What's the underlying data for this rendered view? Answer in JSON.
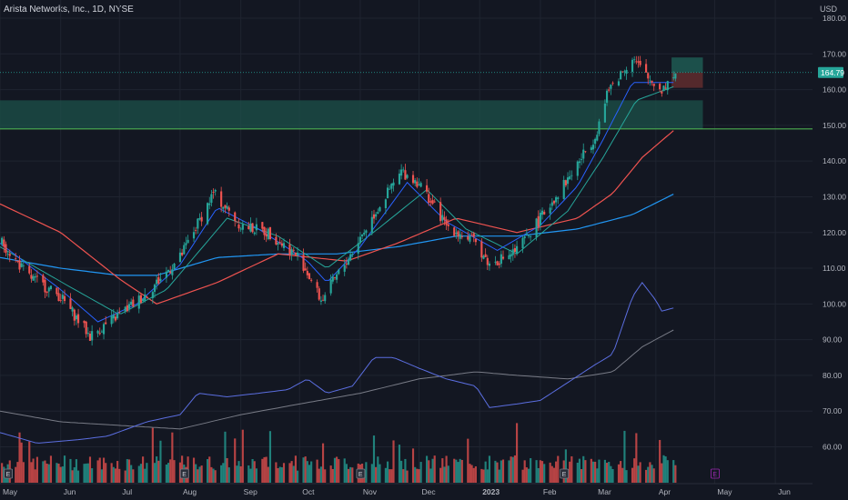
{
  "header": {
    "symbol_title": "Arista Networks, Inc., 1D, NYSE",
    "currency": "USD"
  },
  "colors": {
    "background": "#131722",
    "grid": "#1f2430",
    "up": "#26a69a",
    "down": "#ef5350",
    "ema_fast": "#2962ff",
    "sma_mid": "#26a69a",
    "ma50": "#ef5350",
    "ma200": "#2196f3",
    "relative_strength": "#5b6ee0",
    "rs_ma": "#787b86",
    "support_line": "#4caf50",
    "zone": "#1b4d47",
    "target_zone": "#1f5a52",
    "stop_zone": "#5c2b2e",
    "price_badge": "#26a69a"
  },
  "chart_data": {
    "type": "candlestick",
    "title": "Arista Networks, Inc., 1D, NYSE",
    "ylabel": "USD",
    "ylim": [
      50,
      180
    ],
    "y_ticks": [
      "180.00",
      "170.00",
      "160.00",
      "150.00",
      "140.00",
      "130.00",
      "120.00",
      "110.00",
      "100.00",
      "90.00",
      "80.00",
      "70.00",
      "60.00"
    ],
    "x_ticks": [
      "May",
      "Jun",
      "Jul",
      "Aug",
      "Sep",
      "Oct",
      "Nov",
      "Dec",
      "2023",
      "Feb",
      "Mar",
      "Apr",
      "May",
      "Jun"
    ],
    "x_range": [
      "2022-05-01",
      "2023-06-20"
    ],
    "last_price": "164.79",
    "price_path": [
      [
        "2022-05-01",
        118
      ],
      [
        "2022-05-15",
        108
      ],
      [
        "2022-06-01",
        102
      ],
      [
        "2022-06-16",
        91
      ],
      [
        "2022-07-01",
        97
      ],
      [
        "2022-07-15",
        103
      ],
      [
        "2022-08-01",
        113
      ],
      [
        "2022-08-18",
        131
      ],
      [
        "2022-09-01",
        122
      ],
      [
        "2022-09-15",
        120
      ],
      [
        "2022-10-01",
        113
      ],
      [
        "2022-10-12",
        101
      ],
      [
        "2022-10-25",
        112
      ],
      [
        "2022-11-08",
        125
      ],
      [
        "2022-11-22",
        137
      ],
      [
        "2022-12-01",
        134
      ],
      [
        "2022-12-15",
        122
      ],
      [
        "2022-12-30",
        117
      ],
      [
        "2023-01-06",
        111
      ],
      [
        "2023-01-20",
        115
      ],
      [
        "2023-02-01",
        124
      ],
      [
        "2023-02-15",
        135
      ],
      [
        "2023-03-01",
        147
      ],
      [
        "2023-03-08",
        160
      ],
      [
        "2023-03-20",
        169
      ],
      [
        "2023-03-28",
        163
      ],
      [
        "2023-04-04",
        160
      ],
      [
        "2023-04-11",
        164.79
      ]
    ],
    "ema_fast_path": [
      [
        "2022-05-01",
        117
      ],
      [
        "2022-06-01",
        104
      ],
      [
        "2022-06-20",
        95
      ],
      [
        "2022-07-10",
        100
      ],
      [
        "2022-08-01",
        111
      ],
      [
        "2022-08-20",
        127
      ],
      [
        "2022-09-10",
        121
      ],
      [
        "2022-10-05",
        112
      ],
      [
        "2022-10-15",
        106
      ],
      [
        "2022-11-01",
        116
      ],
      [
        "2022-11-25",
        134
      ],
      [
        "2022-12-15",
        123
      ],
      [
        "2023-01-10",
        115
      ],
      [
        "2023-02-01",
        122
      ],
      [
        "2023-02-20",
        133
      ],
      [
        "2023-03-05",
        146
      ],
      [
        "2023-03-20",
        162
      ],
      [
        "2023-04-11",
        162
      ]
    ],
    "sma_mid_path": [
      [
        "2022-05-01",
        116
      ],
      [
        "2022-06-05",
        105
      ],
      [
        "2022-07-01",
        97
      ],
      [
        "2022-07-25",
        104
      ],
      [
        "2022-08-25",
        124
      ],
      [
        "2022-09-20",
        119
      ],
      [
        "2022-10-15",
        110
      ],
      [
        "2022-11-10",
        121
      ],
      [
        "2022-12-05",
        132
      ],
      [
        "2022-12-25",
        121
      ],
      [
        "2023-01-20",
        114
      ],
      [
        "2023-02-15",
        126
      ],
      [
        "2023-03-05",
        141
      ],
      [
        "2023-03-22",
        157
      ],
      [
        "2023-04-11",
        161
      ]
    ],
    "ma50_path": [
      [
        "2022-05-01",
        128
      ],
      [
        "2022-06-01",
        120
      ],
      [
        "2022-07-01",
        107
      ],
      [
        "2022-07-20",
        100
      ],
      [
        "2022-08-20",
        106
      ],
      [
        "2022-09-20",
        114
      ],
      [
        "2022-10-25",
        112
      ],
      [
        "2022-11-20",
        117
      ],
      [
        "2022-12-20",
        124
      ],
      [
        "2023-01-20",
        120
      ],
      [
        "2023-02-20",
        124
      ],
      [
        "2023-03-10",
        131
      ],
      [
        "2023-03-25",
        141
      ],
      [
        "2023-04-11",
        149
      ]
    ],
    "ma200_path": [
      [
        "2022-05-01",
        113
      ],
      [
        "2022-06-01",
        110
      ],
      [
        "2022-07-01",
        108
      ],
      [
        "2022-07-20",
        108
      ],
      [
        "2022-08-20",
        113
      ],
      [
        "2022-09-20",
        114
      ],
      [
        "2022-10-20",
        114
      ],
      [
        "2022-11-20",
        116
      ],
      [
        "2022-12-20",
        119
      ],
      [
        "2023-01-20",
        119
      ],
      [
        "2023-02-20",
        121
      ],
      [
        "2023-03-20",
        125
      ],
      [
        "2023-04-11",
        131
      ]
    ],
    "relative_strength_path": [
      [
        "2022-05-01",
        64
      ],
      [
        "2022-05-20",
        61
      ],
      [
        "2022-06-10",
        62
      ],
      [
        "2022-06-25",
        63
      ],
      [
        "2022-07-15",
        67
      ],
      [
        "2022-08-01",
        69
      ],
      [
        "2022-08-10",
        75
      ],
      [
        "2022-08-25",
        74
      ],
      [
        "2022-09-10",
        75
      ],
      [
        "2022-09-25",
        76
      ],
      [
        "2022-10-05",
        79
      ],
      [
        "2022-10-15",
        75
      ],
      [
        "2022-10-28",
        77
      ],
      [
        "2022-11-08",
        85
      ],
      [
        "2022-11-18",
        85
      ],
      [
        "2022-12-01",
        82
      ],
      [
        "2022-12-15",
        79
      ],
      [
        "2022-12-30",
        77
      ],
      [
        "2023-01-06",
        71
      ],
      [
        "2023-01-20",
        72
      ],
      [
        "2023-02-01",
        73
      ],
      [
        "2023-02-15",
        78
      ],
      [
        "2023-03-01",
        83
      ],
      [
        "2023-03-10",
        86
      ],
      [
        "2023-03-20",
        102
      ],
      [
        "2023-03-25",
        106
      ],
      [
        "2023-04-01",
        101
      ],
      [
        "2023-04-04",
        98
      ],
      [
        "2023-04-11",
        99
      ]
    ],
    "rs_ma_path": [
      [
        "2022-05-01",
        70
      ],
      [
        "2022-06-01",
        67
      ],
      [
        "2022-07-01",
        66
      ],
      [
        "2022-08-01",
        65
      ],
      [
        "2022-09-01",
        69
      ],
      [
        "2022-10-01",
        72
      ],
      [
        "2022-11-01",
        75
      ],
      [
        "2022-12-01",
        79
      ],
      [
        "2022-12-30",
        81
      ],
      [
        "2023-01-20",
        80
      ],
      [
        "2023-02-15",
        79
      ],
      [
        "2023-03-10",
        81
      ],
      [
        "2023-03-25",
        88
      ],
      [
        "2023-04-11",
        93
      ]
    ],
    "support_level": 149,
    "zone": {
      "from": "2022-05-01",
      "to": "2023-04-25",
      "low": 149,
      "high": 157
    },
    "target_zone": {
      "from": "2023-04-09",
      "to": "2023-04-25",
      "low": 164.79,
      "high": 169
    },
    "stop_zone": {
      "from": "2023-04-09",
      "to": "2023-04-25",
      "low": 160.5,
      "high": 164.79
    },
    "earnings_markers": [
      "2022-05-05",
      "2022-08-03",
      "2022-11-01",
      "2023-02-13"
    ],
    "future_event_marker": {
      "date": "2023-05-01",
      "label": "E"
    }
  }
}
